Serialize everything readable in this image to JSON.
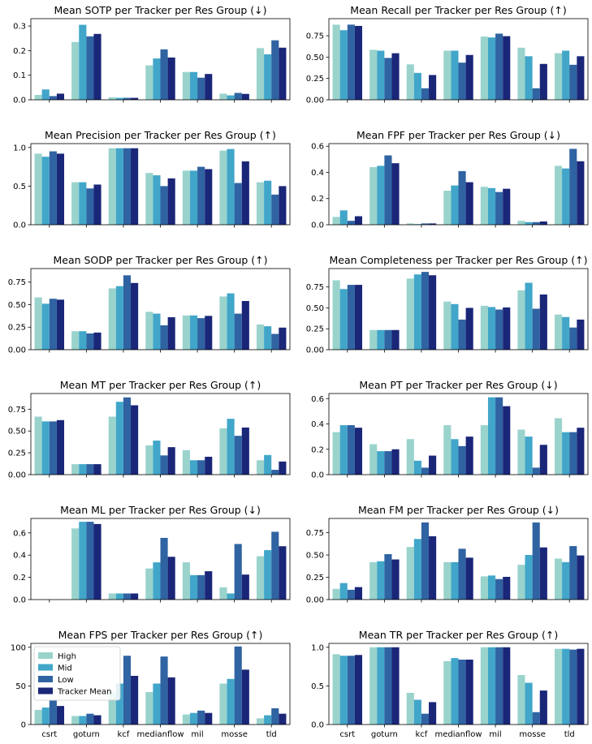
{
  "colors": {
    "High": "#99d3cc",
    "Mid": "#41a6c9",
    "Low": "#2f63a2",
    "Tracker Mean": "#1a2678"
  },
  "legend": {
    "entries": [
      "High",
      "Mid",
      "Low",
      "Tracker Mean"
    ],
    "location": "upper-left",
    "panel": 10
  },
  "chart_data": [
    {
      "type": "bar",
      "title": "Mean SOTP per Tracker per Res Group (↓)",
      "categories": [
        "csrt",
        "goturn",
        "kcf",
        "medianflow",
        "mil",
        "mosse",
        "tld"
      ],
      "series": [
        {
          "name": "High",
          "values": [
            0.02,
            0.235,
            0.01,
            0.14,
            0.113,
            0.025,
            0.21
          ]
        },
        {
          "name": "Mid",
          "values": [
            0.042,
            0.305,
            0.008,
            0.168,
            0.113,
            0.018,
            0.185
          ]
        },
        {
          "name": "Low",
          "values": [
            0.015,
            0.258,
            0.008,
            0.205,
            0.09,
            0.028,
            0.242
          ]
        },
        {
          "name": "Tracker Mean",
          "values": [
            0.025,
            0.268,
            0.008,
            0.172,
            0.105,
            0.024,
            0.212
          ]
        }
      ],
      "ylim": [
        0,
        0.33
      ],
      "yticks": [
        0.0,
        0.1,
        0.2,
        0.3
      ],
      "ytick_labels": [
        "0.0",
        "0.1",
        "0.2",
        "0.3"
      ],
      "show_xticklabels": false
    },
    {
      "type": "bar",
      "title": "Mean Recall per Tracker per Res Group (↑)",
      "categories": [
        "csrt",
        "goturn",
        "kcf",
        "medianflow",
        "mil",
        "mosse",
        "tld"
      ],
      "series": [
        {
          "name": "High",
          "values": [
            0.88,
            0.585,
            0.415,
            0.575,
            0.74,
            0.61,
            0.545
          ]
        },
        {
          "name": "Mid",
          "values": [
            0.815,
            0.575,
            0.315,
            0.575,
            0.73,
            0.51,
            0.575
          ]
        },
        {
          "name": "Low",
          "values": [
            0.88,
            0.49,
            0.135,
            0.435,
            0.775,
            0.135,
            0.41
          ]
        },
        {
          "name": "Tracker Mean",
          "values": [
            0.865,
            0.545,
            0.29,
            0.525,
            0.745,
            0.42,
            0.51
          ]
        }
      ],
      "ylim": [
        0,
        0.95
      ],
      "yticks": [
        0.0,
        0.25,
        0.5,
        0.75
      ],
      "ytick_labels": [
        "0.00",
        "0.25",
        "0.50",
        "0.75"
      ],
      "show_xticklabels": false
    },
    {
      "type": "bar",
      "title": "Mean Precision per Tracker per Res Group (↑)",
      "categories": [
        "csrt",
        "goturn",
        "kcf",
        "medianflow",
        "mil",
        "mosse",
        "tld"
      ],
      "series": [
        {
          "name": "High",
          "values": [
            0.92,
            0.55,
            0.99,
            0.67,
            0.7,
            0.96,
            0.55
          ]
        },
        {
          "name": "Mid",
          "values": [
            0.88,
            0.55,
            0.99,
            0.64,
            0.7,
            0.98,
            0.57
          ]
        },
        {
          "name": "Low",
          "values": [
            0.95,
            0.47,
            0.99,
            0.5,
            0.75,
            0.54,
            0.39
          ]
        },
        {
          "name": "Tracker Mean",
          "values": [
            0.92,
            0.52,
            0.99,
            0.6,
            0.72,
            0.82,
            0.5
          ]
        }
      ],
      "ylim": [
        0,
        1.05
      ],
      "yticks": [
        0.0,
        0.5,
        1.0
      ],
      "ytick_labels": [
        "0.0",
        "0.5",
        "1.0"
      ],
      "show_xticklabels": false
    },
    {
      "type": "bar",
      "title": "Mean FPF per Tracker per Res Group (↓)",
      "categories": [
        "csrt",
        "goturn",
        "kcf",
        "medianflow",
        "mil",
        "mosse",
        "tld"
      ],
      "series": [
        {
          "name": "High",
          "values": [
            0.06,
            0.44,
            0.01,
            0.26,
            0.29,
            0.03,
            0.45
          ]
        },
        {
          "name": "Mid",
          "values": [
            0.11,
            0.45,
            0.005,
            0.3,
            0.28,
            0.02,
            0.43
          ]
        },
        {
          "name": "Low",
          "values": [
            0.03,
            0.53,
            0.01,
            0.41,
            0.25,
            0.02,
            0.58
          ]
        },
        {
          "name": "Tracker Mean",
          "values": [
            0.065,
            0.47,
            0.01,
            0.325,
            0.275,
            0.025,
            0.485
          ]
        }
      ],
      "ylim": [
        0,
        0.62
      ],
      "yticks": [
        0.0,
        0.2,
        0.4,
        0.6
      ],
      "ytick_labels": [
        "0.0",
        "0.2",
        "0.4",
        "0.6"
      ],
      "show_xticklabels": false
    },
    {
      "type": "bar",
      "title": "Mean SODP per Tracker per Res Group (↑)",
      "categories": [
        "csrt",
        "goturn",
        "kcf",
        "medianflow",
        "mil",
        "mosse",
        "tld"
      ],
      "series": [
        {
          "name": "High",
          "values": [
            0.58,
            0.205,
            0.68,
            0.42,
            0.38,
            0.59,
            0.28
          ]
        },
        {
          "name": "Mid",
          "values": [
            0.51,
            0.205,
            0.705,
            0.4,
            0.38,
            0.625,
            0.26
          ]
        },
        {
          "name": "Low",
          "values": [
            0.565,
            0.18,
            0.825,
            0.27,
            0.35,
            0.4,
            0.175
          ]
        },
        {
          "name": "Tracker Mean",
          "values": [
            0.555,
            0.19,
            0.74,
            0.36,
            0.375,
            0.54,
            0.245
          ]
        }
      ],
      "ylim": [
        0,
        0.9
      ],
      "yticks": [
        0.0,
        0.25,
        0.5,
        0.75
      ],
      "ytick_labels": [
        "0.00",
        "0.25",
        "0.50",
        "0.75"
      ],
      "show_xticklabels": false
    },
    {
      "type": "bar",
      "title": "Mean Completeness per Tracker per Res Group (↑)",
      "categories": [
        "csrt",
        "goturn",
        "kcf",
        "medianflow",
        "mil",
        "mosse",
        "tld"
      ],
      "series": [
        {
          "name": "High",
          "values": [
            0.83,
            0.235,
            0.85,
            0.575,
            0.525,
            0.71,
            0.42
          ]
        },
        {
          "name": "Mid",
          "values": [
            0.725,
            0.235,
            0.9,
            0.545,
            0.51,
            0.8,
            0.39
          ]
        },
        {
          "name": "Low",
          "values": [
            0.775,
            0.235,
            0.93,
            0.36,
            0.48,
            0.49,
            0.265
          ]
        },
        {
          "name": "Tracker Mean",
          "values": [
            0.775,
            0.235,
            0.89,
            0.5,
            0.505,
            0.66,
            0.36
          ]
        }
      ],
      "ylim": [
        0,
        0.97
      ],
      "yticks": [
        0.0,
        0.25,
        0.5,
        0.75
      ],
      "ytick_labels": [
        "0.00",
        "0.25",
        "0.50",
        "0.75"
      ],
      "show_xticklabels": false
    },
    {
      "type": "bar",
      "title": "Mean MT per Tracker per Res Group (↑)",
      "categories": [
        "csrt",
        "goturn",
        "kcf",
        "medianflow",
        "mil",
        "mosse",
        "tld"
      ],
      "series": [
        {
          "name": "High",
          "values": [
            0.665,
            0.12,
            0.665,
            0.335,
            0.28,
            0.53,
            0.165
          ]
        },
        {
          "name": "Mid",
          "values": [
            0.61,
            0.12,
            0.835,
            0.39,
            0.165,
            0.64,
            0.225
          ]
        },
        {
          "name": "Low",
          "values": [
            0.61,
            0.12,
            0.885,
            0.22,
            0.165,
            0.445,
            0.055
          ]
        },
        {
          "name": "Tracker Mean",
          "values": [
            0.625,
            0.12,
            0.795,
            0.315,
            0.205,
            0.54,
            0.15
          ]
        }
      ],
      "ylim": [
        0,
        0.93
      ],
      "yticks": [
        0.0,
        0.25,
        0.5,
        0.75
      ],
      "ytick_labels": [
        "0.00",
        "0.25",
        "0.50",
        "0.75"
      ],
      "show_xticklabels": false
    },
    {
      "type": "bar",
      "title": "Mean PT per Tracker per Res Group (↓)",
      "categories": [
        "csrt",
        "goturn",
        "kcf",
        "medianflow",
        "mil",
        "mosse",
        "tld"
      ],
      "series": [
        {
          "name": "High",
          "values": [
            0.335,
            0.24,
            0.28,
            0.39,
            0.39,
            0.355,
            0.445
          ]
        },
        {
          "name": "Mid",
          "values": [
            0.39,
            0.185,
            0.11,
            0.28,
            0.61,
            0.3,
            0.335
          ]
        },
        {
          "name": "Low",
          "values": [
            0.39,
            0.185,
            0.055,
            0.225,
            0.61,
            0.055,
            0.335
          ]
        },
        {
          "name": "Tracker Mean",
          "values": [
            0.37,
            0.2,
            0.15,
            0.3,
            0.54,
            0.235,
            0.37
          ]
        }
      ],
      "ylim": [
        0,
        0.64
      ],
      "yticks": [
        0.0,
        0.2,
        0.4,
        0.6
      ],
      "ytick_labels": [
        "0.0",
        "0.2",
        "0.4",
        "0.6"
      ],
      "show_xticklabels": false
    },
    {
      "type": "bar",
      "title": "Mean ML per Tracker per Res Group (↓)",
      "categories": [
        "csrt",
        "goturn",
        "kcf",
        "medianflow",
        "mil",
        "mosse",
        "tld"
      ],
      "series": [
        {
          "name": "High",
          "values": [
            0.0,
            0.64,
            0.055,
            0.28,
            0.335,
            0.11,
            0.39
          ]
        },
        {
          "name": "Mid",
          "values": [
            0.0,
            0.7,
            0.055,
            0.335,
            0.22,
            0.055,
            0.445
          ]
        },
        {
          "name": "Low",
          "values": [
            0.0,
            0.7,
            0.055,
            0.555,
            0.22,
            0.5,
            0.61
          ]
        },
        {
          "name": "Tracker Mean",
          "values": [
            0.0,
            0.68,
            0.055,
            0.385,
            0.255,
            0.225,
            0.48
          ]
        }
      ],
      "ylim": [
        0,
        0.73
      ],
      "yticks": [
        0.0,
        0.2,
        0.4,
        0.6
      ],
      "ytick_labels": [
        "0.0",
        "0.2",
        "0.4",
        "0.6"
      ],
      "show_xticklabels": false
    },
    {
      "type": "bar",
      "title": "Mean FM per Tracker per Res Group (↓)",
      "categories": [
        "csrt",
        "goturn",
        "kcf",
        "medianflow",
        "mil",
        "mosse",
        "tld"
      ],
      "series": [
        {
          "name": "High",
          "values": [
            0.12,
            0.42,
            0.59,
            0.42,
            0.26,
            0.39,
            0.46
          ]
        },
        {
          "name": "Mid",
          "values": [
            0.185,
            0.43,
            0.68,
            0.42,
            0.27,
            0.5,
            0.42
          ]
        },
        {
          "name": "Low",
          "values": [
            0.11,
            0.51,
            0.865,
            0.57,
            0.23,
            0.865,
            0.6
          ]
        },
        {
          "name": "Tracker Mean",
          "values": [
            0.14,
            0.45,
            0.71,
            0.47,
            0.255,
            0.585,
            0.495
          ]
        }
      ],
      "ylim": [
        0,
        0.91
      ],
      "yticks": [
        0.0,
        0.25,
        0.5,
        0.75
      ],
      "ytick_labels": [
        "0.00",
        "0.25",
        "0.50",
        "0.75"
      ],
      "show_xticklabels": false
    },
    {
      "type": "bar",
      "title": "Mean FPS per Tracker per Res Group (↑)",
      "categories": [
        "csrt",
        "goturn",
        "kcf",
        "medianflow",
        "mil",
        "mosse",
        "tld"
      ],
      "series": [
        {
          "name": "High",
          "values": [
            19,
            11,
            42,
            42,
            13,
            53,
            8
          ]
        },
        {
          "name": "Mid",
          "values": [
            22,
            11,
            53,
            53,
            15,
            59,
            12
          ]
        },
        {
          "name": "Low",
          "values": [
            31,
            14,
            89,
            88,
            18,
            101,
            21
          ]
        },
        {
          "name": "Tracker Mean",
          "values": [
            24,
            12,
            63,
            61,
            15,
            71,
            14
          ]
        }
      ],
      "ylim": [
        0,
        105
      ],
      "yticks": [
        0,
        50,
        100
      ],
      "ytick_labels": [
        "0",
        "50",
        "100"
      ],
      "show_xticklabels": true
    },
    {
      "type": "bar",
      "title": "Mean TR per Tracker per Res Group (↑)",
      "categories": [
        "csrt",
        "goturn",
        "kcf",
        "medianflow",
        "mil",
        "mosse",
        "tld"
      ],
      "series": [
        {
          "name": "High",
          "values": [
            0.91,
            1.0,
            0.41,
            0.82,
            1.0,
            0.64,
            0.98
          ]
        },
        {
          "name": "Mid",
          "values": [
            0.89,
            1.0,
            0.32,
            0.86,
            1.0,
            0.54,
            0.98
          ]
        },
        {
          "name": "Low",
          "values": [
            0.89,
            1.0,
            0.14,
            0.84,
            1.0,
            0.16,
            0.97
          ]
        },
        {
          "name": "Tracker Mean",
          "values": [
            0.9,
            1.0,
            0.29,
            0.84,
            1.0,
            0.44,
            0.98
          ]
        }
      ],
      "ylim": [
        0,
        1.05
      ],
      "yticks": [
        0.0,
        0.5,
        1.0
      ],
      "ytick_labels": [
        "0.0",
        "0.5",
        "1.0"
      ],
      "show_xticklabels": true
    }
  ]
}
